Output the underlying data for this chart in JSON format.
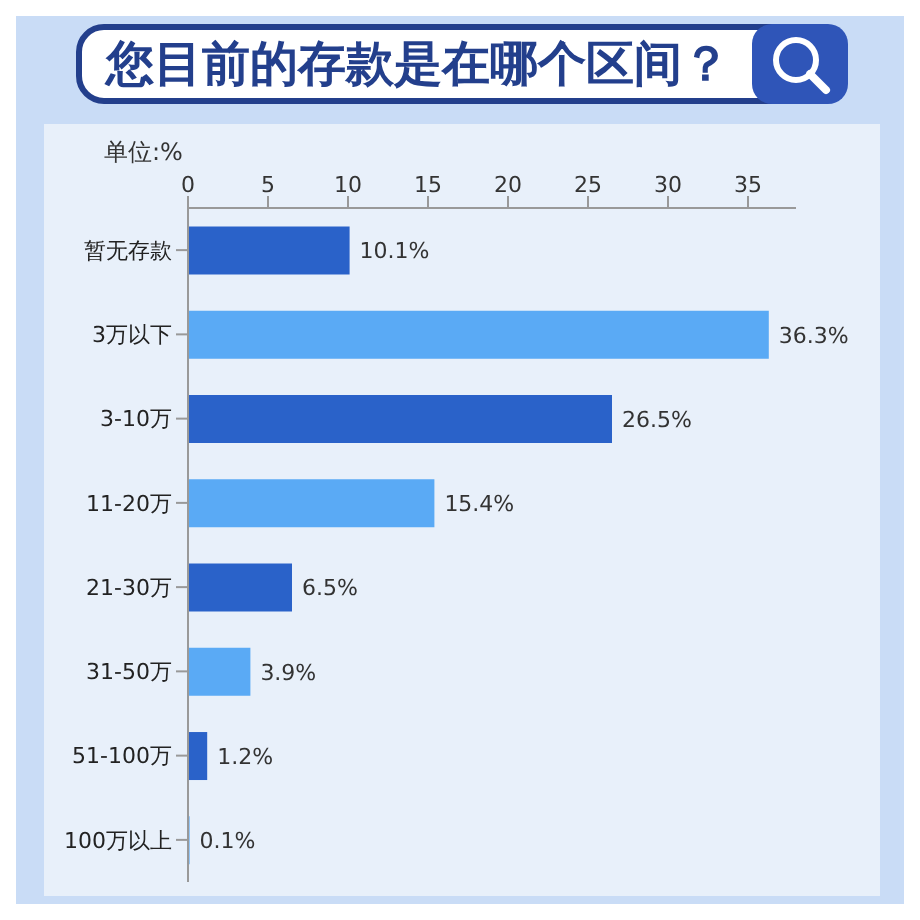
{
  "chart_data": {
    "type": "bar",
    "orientation": "horizontal",
    "title": "您目前的存款是在哪个区间？",
    "ylabel": "单位:%",
    "categories": [
      "暂无存款",
      "3万以下",
      "3-10万",
      "11-20万",
      "21-30万",
      "31-50万",
      "51-100万",
      "100万以上"
    ],
    "values": [
      10.1,
      36.3,
      26.5,
      15.4,
      6.5,
      3.9,
      1.2,
      0.1
    ],
    "colors": [
      "#2a62c9",
      "#5aaaf5",
      "#2a62c9",
      "#5aaaf5",
      "#2a62c9",
      "#5aaaf5",
      "#2a62c9",
      "#5aaaf5"
    ],
    "value_labels": [
      "10.1%",
      "36.3%",
      "26.5%",
      "15.4%",
      "6.5%",
      "3.9%",
      "1.2%",
      "0.1%"
    ],
    "xlim": [
      0,
      38
    ],
    "xticks": [
      0,
      5,
      10,
      15,
      20,
      25,
      30,
      35
    ],
    "grid": false
  }
}
